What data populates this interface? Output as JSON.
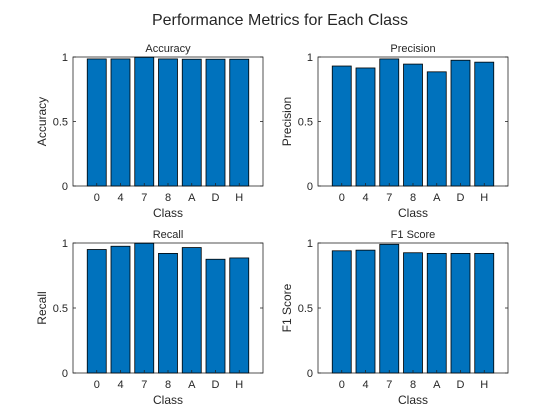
{
  "figure_title": "Performance Metrics for Each Class",
  "chart_data": [
    {
      "type": "bar",
      "title": "Accuracy",
      "xlabel": "Class",
      "ylabel": "Accuracy",
      "categories": [
        "0",
        "4",
        "7",
        "8",
        "A",
        "D",
        "H"
      ],
      "values": [
        0.985,
        0.985,
        0.998,
        0.985,
        0.983,
        0.983,
        0.983
      ],
      "ylim": [
        0,
        1
      ],
      "yticks": [
        "0",
        "0.5",
        "1"
      ],
      "bar_color": "#0072BD"
    },
    {
      "type": "bar",
      "title": "Precision",
      "xlabel": "Class",
      "ylabel": "Precision",
      "categories": [
        "0",
        "4",
        "7",
        "8",
        "A",
        "D",
        "H"
      ],
      "values": [
        0.93,
        0.915,
        0.985,
        0.945,
        0.885,
        0.975,
        0.96
      ],
      "ylim": [
        0,
        1
      ],
      "yticks": [
        "0",
        "0.5",
        "1"
      ],
      "bar_color": "#0072BD"
    },
    {
      "type": "bar",
      "title": "Recall",
      "xlabel": "Class",
      "ylabel": "Recall",
      "categories": [
        "0",
        "4",
        "7",
        "8",
        "A",
        "D",
        "H"
      ],
      "values": [
        0.95,
        0.975,
        0.998,
        0.92,
        0.965,
        0.875,
        0.885
      ],
      "ylim": [
        0,
        1
      ],
      "yticks": [
        "0",
        "0.5",
        "1"
      ],
      "bar_color": "#0072BD"
    },
    {
      "type": "bar",
      "title": "F1 Score",
      "xlabel": "Class",
      "ylabel": "F1 Score",
      "categories": [
        "0",
        "4",
        "7",
        "8",
        "A",
        "D",
        "H"
      ],
      "values": [
        0.94,
        0.945,
        0.99,
        0.925,
        0.92,
        0.92,
        0.92
      ],
      "ylim": [
        0,
        1
      ],
      "yticks": [
        "0",
        "0.5",
        "1"
      ],
      "bar_color": "#0072BD"
    }
  ]
}
